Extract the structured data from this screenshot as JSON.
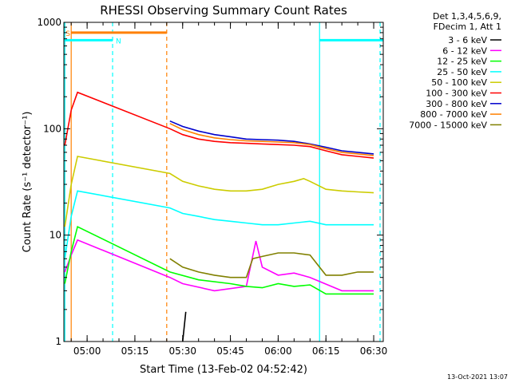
{
  "chart_data": {
    "type": "line",
    "title": "RHESSI Observing Summary Count Rates",
    "xlabel": "Start Time (13-Feb-02 04:52:42)",
    "ylabel": "Count Rate (s⁻¹ detector⁻¹)",
    "y_scale": "log",
    "ylim": [
      1,
      1000
    ],
    "xlim": [
      "04:52:42",
      "06:33:00"
    ],
    "x_ticks": [
      "05:00",
      "05:15",
      "05:30",
      "05:45",
      "06:00",
      "06:15",
      "06:30"
    ],
    "y_ticks": [
      "1",
      "10",
      "100",
      "1000"
    ],
    "legend_header": [
      "Det 1,3,4,5,6,9,",
      "FDecim 1, Att 1"
    ],
    "legend_placement": "right",
    "series": [
      {
        "name": "3 - 6 keV",
        "color": "#000000",
        "x": [
          "05:30",
          "05:31"
        ],
        "y": [
          1.0,
          1.9
        ]
      },
      {
        "name": "6 - 12 keV",
        "color": "#ff00ff",
        "x": [
          "04:53",
          "04:55",
          "04:57",
          "05:26",
          "05:30",
          "05:40",
          "05:50",
          "05:53",
          "05:55",
          "06:00",
          "06:05",
          "06:10",
          "06:20",
          "06:30"
        ],
        "y": [
          4.5,
          6.5,
          9.0,
          4.0,
          3.5,
          3.0,
          3.3,
          8.8,
          5.0,
          4.2,
          4.4,
          4.0,
          3.0,
          3.0
        ]
      },
      {
        "name": "12 - 25 keV",
        "color": "#00ff00",
        "x": [
          "04:53",
          "04:55",
          "04:57",
          "05:26",
          "05:35",
          "05:45",
          "05:50",
          "05:55",
          "06:00",
          "06:05",
          "06:10",
          "06:15",
          "06:20",
          "06:30"
        ],
        "y": [
          3.5,
          7.0,
          12.0,
          4.5,
          3.8,
          3.5,
          3.3,
          3.2,
          3.5,
          3.3,
          3.4,
          2.8,
          2.8,
          2.8
        ]
      },
      {
        "name": "25 - 50 keV",
        "color": "#00ffff",
        "x": [
          "04:53",
          "04:55",
          "04:57",
          "05:26",
          "05:30",
          "05:35",
          "05:40",
          "05:45",
          "05:50",
          "05:55",
          "06:00",
          "06:05",
          "06:10",
          "06:15",
          "06:20",
          "06:25",
          "06:30"
        ],
        "y": [
          6.0,
          15.0,
          26.0,
          18.0,
          16.0,
          15.0,
          14.0,
          13.5,
          13.0,
          12.5,
          12.5,
          13.0,
          13.5,
          12.5,
          12.5,
          12.5,
          12.5
        ]
      },
      {
        "name": "50 - 100 keV",
        "color": "#cccc00",
        "x": [
          "04:53",
          "04:55",
          "04:57",
          "05:26",
          "05:30",
          "05:35",
          "05:40",
          "05:45",
          "05:50",
          "05:55",
          "06:00",
          "06:05",
          "06:08",
          "06:10",
          "06:15",
          "06:20",
          "06:25",
          "06:30"
        ],
        "y": [
          12.0,
          30.0,
          55.0,
          38.0,
          32.0,
          29.0,
          27.0,
          26.0,
          26.0,
          27.0,
          30.0,
          32.0,
          34.0,
          32.0,
          27.0,
          26.0,
          25.5,
          25.0
        ]
      },
      {
        "name": "100 - 300 keV",
        "color": "#ff0000",
        "x": [
          "04:53",
          "04:55",
          "04:57",
          "05:26",
          "05:30",
          "05:35",
          "05:40",
          "05:45",
          "05:50",
          "05:55",
          "06:00",
          "06:05",
          "06:10",
          "06:15",
          "06:20",
          "06:25",
          "06:30"
        ],
        "y": [
          70.0,
          150.0,
          220.0,
          100.0,
          88.0,
          80.0,
          76.0,
          74.0,
          73.0,
          72.0,
          71.0,
          70.0,
          68.0,
          62.0,
          57.0,
          55.0,
          53.0
        ]
      },
      {
        "name": "300 - 800 keV",
        "color": "#0000cc",
        "x": [
          "05:26",
          "05:30",
          "05:35",
          "05:40",
          "05:45",
          "05:50",
          "05:55",
          "06:00",
          "06:05",
          "06:10",
          "06:15",
          "06:20",
          "06:25",
          "06:30"
        ],
        "y": [
          118.0,
          105.0,
          95.0,
          88.0,
          84.0,
          80.0,
          79.0,
          78.0,
          76.0,
          72.0,
          67.0,
          62.0,
          60.0,
          58.0
        ]
      },
      {
        "name": "800 - 7000 keV",
        "color": "#ff8000",
        "x": [
          "05:26",
          "05:30",
          "05:35",
          "05:40",
          "05:45",
          "05:50",
          "05:55",
          "06:00",
          "06:05",
          "06:10",
          "06:15",
          "06:20",
          "06:25",
          "06:30"
        ],
        "y": [
          112.0,
          98.0,
          88.0,
          82.0,
          79.0,
          77.0,
          76.0,
          75.0,
          74.0,
          71.0,
          65.0,
          60.0,
          58.0,
          56.0
        ]
      },
      {
        "name": "7000 - 15000 keV",
        "color": "#808000",
        "x": [
          "05:26",
          "05:30",
          "05:35",
          "05:40",
          "05:45",
          "05:50",
          "05:52",
          "05:55",
          "06:00",
          "06:05",
          "06:10",
          "06:15",
          "06:20",
          "06:25",
          "06:30"
        ],
        "y": [
          6.0,
          5.0,
          4.5,
          4.2,
          4.0,
          4.0,
          6.0,
          6.3,
          6.8,
          6.8,
          6.5,
          4.2,
          4.2,
          4.5,
          4.5
        ]
      }
    ],
    "annotations": [
      {
        "text": "S",
        "color": "#ff8000"
      },
      {
        "text": "N",
        "color": "#00ffff"
      }
    ],
    "flag_bars": [
      {
        "label": "S",
        "color": "#ff8000",
        "x_start": "04:55",
        "x_end": "05:25",
        "level": 800
      },
      {
        "label": "N",
        "color": "#00ffff",
        "x_start": "04:52:42",
        "x_end": "05:08",
        "level": 680
      },
      {
        "label": "",
        "color": "#00ffff",
        "x_start": "06:13",
        "x_end": "06:33",
        "level": 680
      }
    ],
    "vlines": [
      {
        "x": "04:55",
        "color": "#ff8000",
        "style": "solid"
      },
      {
        "x": "05:25",
        "color": "#ff8000",
        "style": "dashed"
      },
      {
        "x": "04:53",
        "color": "#00ffff",
        "style": "solid"
      },
      {
        "x": "05:08",
        "color": "#00ffff",
        "style": "dashed"
      },
      {
        "x": "06:13",
        "color": "#00ffff",
        "style": "solid"
      },
      {
        "x": "06:32",
        "color": "#00ffff",
        "style": "dashed"
      }
    ],
    "timestamp": "13-Oct-2021 13:07"
  }
}
